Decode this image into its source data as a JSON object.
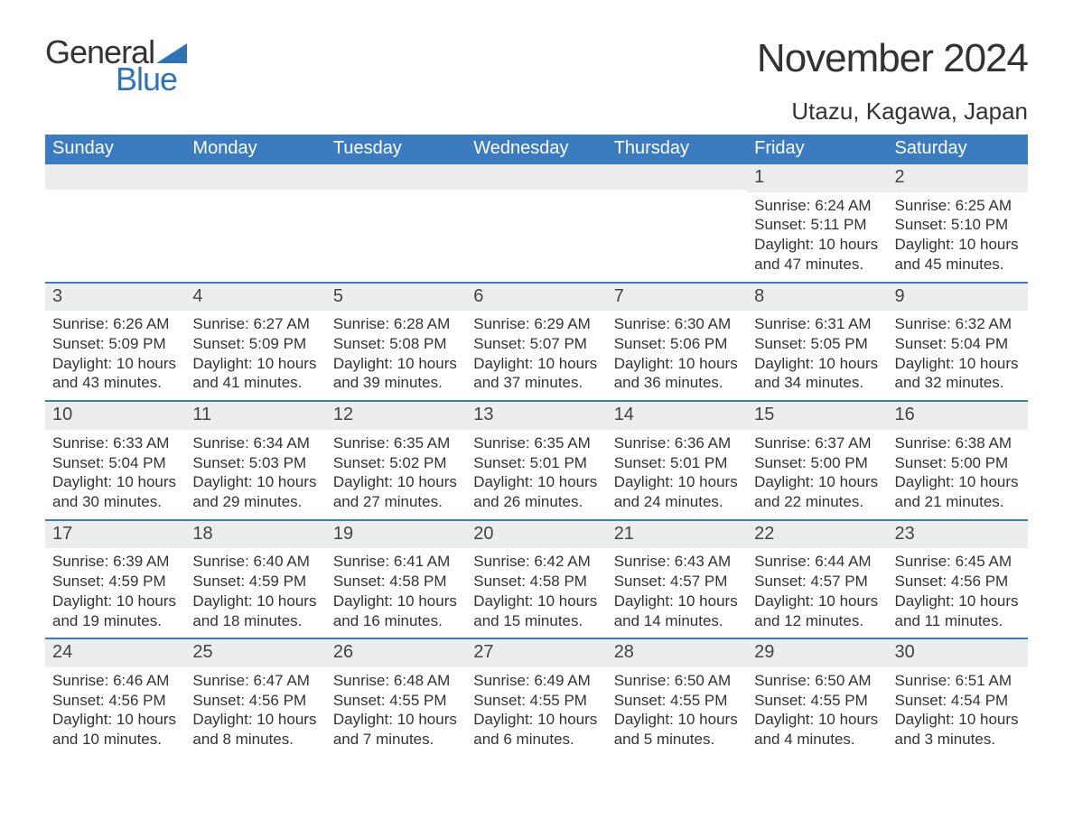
{
  "brand": {
    "part1": "General",
    "part2": "Blue",
    "accent_color": "#2f73b7"
  },
  "title": "November 2024",
  "location": "Utazu, Kagawa, Japan",
  "colors": {
    "header_bg": "#3b7bbf",
    "header_text": "#ffffff",
    "row_divider": "#3b7bbf",
    "daynum_bg": "#eceded",
    "page_bg": "#ffffff",
    "body_text": "#333333"
  },
  "typography": {
    "title_fontsize": 44,
    "location_fontsize": 26,
    "weekday_fontsize": 20,
    "daynum_fontsize": 20,
    "body_fontsize": 17,
    "font_family": "Arial"
  },
  "layout": {
    "columns": 7,
    "rows": 5,
    "first_day_column_index": 5
  },
  "weekdays": [
    "Sunday",
    "Monday",
    "Tuesday",
    "Wednesday",
    "Thursday",
    "Friday",
    "Saturday"
  ],
  "days": [
    {
      "n": 1,
      "sunrise": "6:24 AM",
      "sunset": "5:11 PM",
      "daylight": "10 hours and 47 minutes."
    },
    {
      "n": 2,
      "sunrise": "6:25 AM",
      "sunset": "5:10 PM",
      "daylight": "10 hours and 45 minutes."
    },
    {
      "n": 3,
      "sunrise": "6:26 AM",
      "sunset": "5:09 PM",
      "daylight": "10 hours and 43 minutes."
    },
    {
      "n": 4,
      "sunrise": "6:27 AM",
      "sunset": "5:09 PM",
      "daylight": "10 hours and 41 minutes."
    },
    {
      "n": 5,
      "sunrise": "6:28 AM",
      "sunset": "5:08 PM",
      "daylight": "10 hours and 39 minutes."
    },
    {
      "n": 6,
      "sunrise": "6:29 AM",
      "sunset": "5:07 PM",
      "daylight": "10 hours and 37 minutes."
    },
    {
      "n": 7,
      "sunrise": "6:30 AM",
      "sunset": "5:06 PM",
      "daylight": "10 hours and 36 minutes."
    },
    {
      "n": 8,
      "sunrise": "6:31 AM",
      "sunset": "5:05 PM",
      "daylight": "10 hours and 34 minutes."
    },
    {
      "n": 9,
      "sunrise": "6:32 AM",
      "sunset": "5:04 PM",
      "daylight": "10 hours and 32 minutes."
    },
    {
      "n": 10,
      "sunrise": "6:33 AM",
      "sunset": "5:04 PM",
      "daylight": "10 hours and 30 minutes."
    },
    {
      "n": 11,
      "sunrise": "6:34 AM",
      "sunset": "5:03 PM",
      "daylight": "10 hours and 29 minutes."
    },
    {
      "n": 12,
      "sunrise": "6:35 AM",
      "sunset": "5:02 PM",
      "daylight": "10 hours and 27 minutes."
    },
    {
      "n": 13,
      "sunrise": "6:35 AM",
      "sunset": "5:01 PM",
      "daylight": "10 hours and 26 minutes."
    },
    {
      "n": 14,
      "sunrise": "6:36 AM",
      "sunset": "5:01 PM",
      "daylight": "10 hours and 24 minutes."
    },
    {
      "n": 15,
      "sunrise": "6:37 AM",
      "sunset": "5:00 PM",
      "daylight": "10 hours and 22 minutes."
    },
    {
      "n": 16,
      "sunrise": "6:38 AM",
      "sunset": "5:00 PM",
      "daylight": "10 hours and 21 minutes."
    },
    {
      "n": 17,
      "sunrise": "6:39 AM",
      "sunset": "4:59 PM",
      "daylight": "10 hours and 19 minutes."
    },
    {
      "n": 18,
      "sunrise": "6:40 AM",
      "sunset": "4:59 PM",
      "daylight": "10 hours and 18 minutes."
    },
    {
      "n": 19,
      "sunrise": "6:41 AM",
      "sunset": "4:58 PM",
      "daylight": "10 hours and 16 minutes."
    },
    {
      "n": 20,
      "sunrise": "6:42 AM",
      "sunset": "4:58 PM",
      "daylight": "10 hours and 15 minutes."
    },
    {
      "n": 21,
      "sunrise": "6:43 AM",
      "sunset": "4:57 PM",
      "daylight": "10 hours and 14 minutes."
    },
    {
      "n": 22,
      "sunrise": "6:44 AM",
      "sunset": "4:57 PM",
      "daylight": "10 hours and 12 minutes."
    },
    {
      "n": 23,
      "sunrise": "6:45 AM",
      "sunset": "4:56 PM",
      "daylight": "10 hours and 11 minutes."
    },
    {
      "n": 24,
      "sunrise": "6:46 AM",
      "sunset": "4:56 PM",
      "daylight": "10 hours and 10 minutes."
    },
    {
      "n": 25,
      "sunrise": "6:47 AM",
      "sunset": "4:56 PM",
      "daylight": "10 hours and 8 minutes."
    },
    {
      "n": 26,
      "sunrise": "6:48 AM",
      "sunset": "4:55 PM",
      "daylight": "10 hours and 7 minutes."
    },
    {
      "n": 27,
      "sunrise": "6:49 AM",
      "sunset": "4:55 PM",
      "daylight": "10 hours and 6 minutes."
    },
    {
      "n": 28,
      "sunrise": "6:50 AM",
      "sunset": "4:55 PM",
      "daylight": "10 hours and 5 minutes."
    },
    {
      "n": 29,
      "sunrise": "6:50 AM",
      "sunset": "4:55 PM",
      "daylight": "10 hours and 4 minutes."
    },
    {
      "n": 30,
      "sunrise": "6:51 AM",
      "sunset": "4:54 PM",
      "daylight": "10 hours and 3 minutes."
    }
  ],
  "labels": {
    "sunrise": "Sunrise: ",
    "sunset": "Sunset: ",
    "daylight": "Daylight: "
  }
}
